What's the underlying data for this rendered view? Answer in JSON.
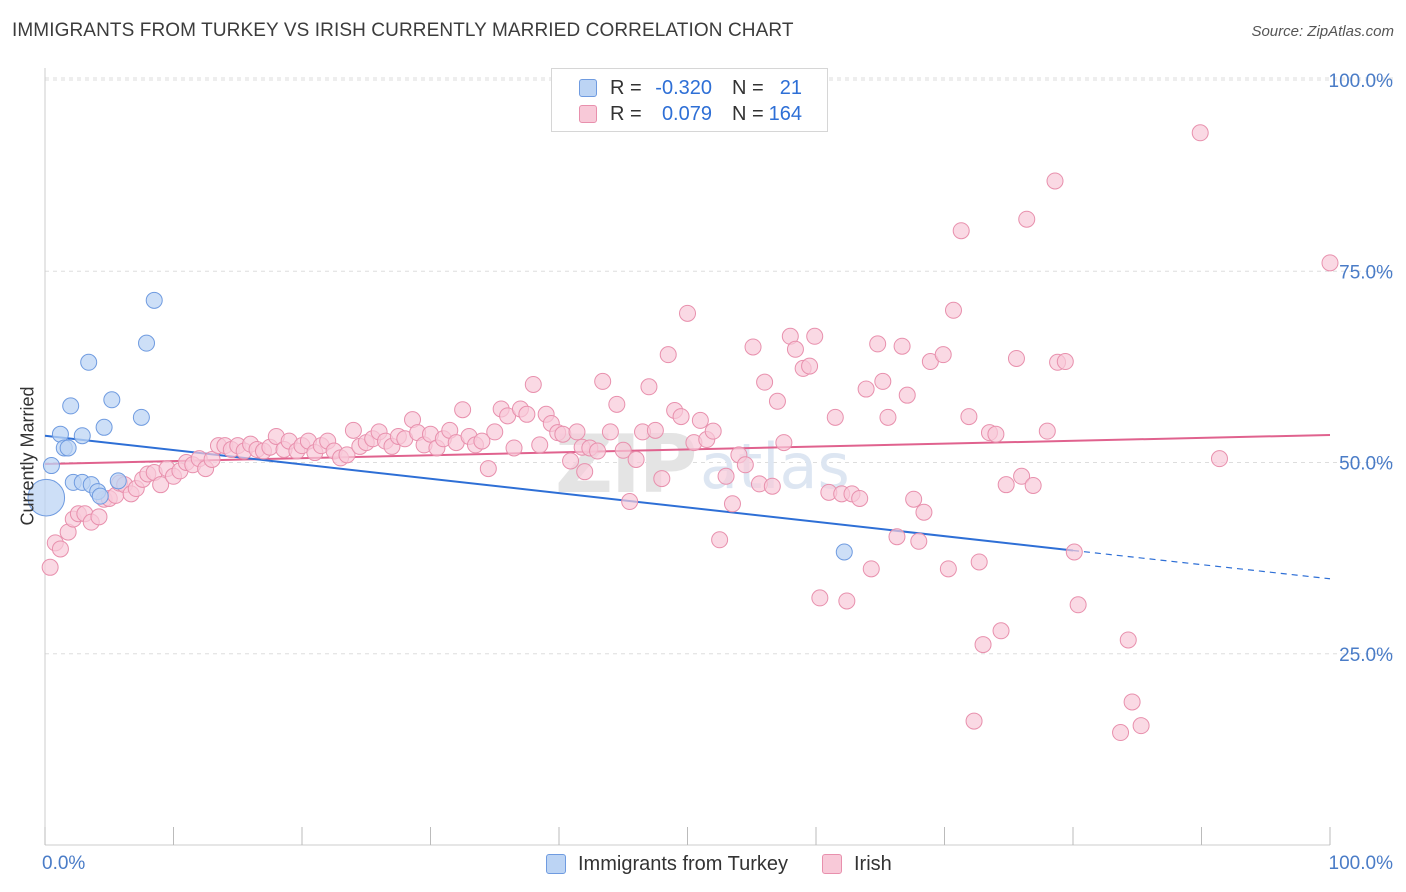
{
  "title": "IMMIGRANTS FROM TURKEY VS IRISH CURRENTLY MARRIED CORRELATION CHART",
  "source": "Source: ZipAtlas.com",
  "watermark": {
    "zip": "ZIP",
    "atlas": "atlas"
  },
  "legend": {
    "rows": [
      {
        "r_label": "R =",
        "r_value": "-0.320",
        "n_label": "N =",
        "n_value": "21"
      },
      {
        "r_label": "R =",
        "r_value": "0.079",
        "n_label": "N =",
        "n_value": "164"
      }
    ]
  },
  "colors": {
    "blue_fill": "#bcd4f4",
    "blue_stroke": "#6f9be0",
    "blue_line": "#2e6fd6",
    "pink_fill": "#f8c9d8",
    "pink_stroke": "#e890ad",
    "pink_line": "#e0628e",
    "axis_text": "#4a7cc7",
    "grid": "#dddddd"
  },
  "chart_data": {
    "type": "scatter",
    "title": "IMMIGRANTS FROM TURKEY VS IRISH CURRENTLY MARRIED CORRELATION CHART",
    "xlabel": "",
    "ylabel": "Currently Married",
    "xlim": [
      0,
      100
    ],
    "ylim": [
      0,
      105
    ],
    "x_tick_labels": [
      "0.0%",
      "100.0%"
    ],
    "y_ticks": [
      25,
      50,
      75,
      100
    ],
    "y_tick_labels": [
      "25.0%",
      "50.0%",
      "75.0%",
      "100.0%"
    ],
    "grid": "horizontal dashed",
    "legend_placement": "bottom",
    "series": [
      {
        "name": "Immigrants from Turkey",
        "color": "#6f9be0",
        "points": [
          [
            0.1,
            45.4,
            3.2
          ],
          [
            0.5,
            49.6,
            1.4
          ],
          [
            1.2,
            53.7,
            1.4
          ],
          [
            1.5,
            51.9,
            1.4
          ],
          [
            1.8,
            51.9,
            1.4
          ],
          [
            2.0,
            57.4,
            1.4
          ],
          [
            2.2,
            47.4,
            1.4
          ],
          [
            2.9,
            47.4,
            1.4
          ],
          [
            2.9,
            53.5,
            1.4
          ],
          [
            3.4,
            63.1,
            1.4
          ],
          [
            3.6,
            47.1,
            1.4
          ],
          [
            4.1,
            46.2,
            1.4
          ],
          [
            4.3,
            45.6,
            1.4
          ],
          [
            4.6,
            54.6,
            1.4
          ],
          [
            5.2,
            58.2,
            1.4
          ],
          [
            5.7,
            47.6,
            1.4
          ],
          [
            7.5,
            55.9,
            1.4
          ],
          [
            7.9,
            65.6,
            1.4
          ],
          [
            8.5,
            71.2,
            1.4
          ],
          [
            62.2,
            38.3,
            1.4
          ]
        ],
        "trend": {
          "x": [
            0,
            80
          ],
          "y": [
            53.5,
            38.5
          ],
          "dashed_to": [
            100,
            34.8
          ]
        }
      },
      {
        "name": "Irish",
        "color": "#e890ad",
        "points": [
          [
            0.4,
            36.3,
            1.4
          ],
          [
            0.8,
            39.5,
            1.4
          ],
          [
            1.2,
            38.7,
            1.4
          ],
          [
            1.8,
            40.9,
            1.4
          ],
          [
            2.2,
            42.6,
            1.4
          ],
          [
            2.6,
            43.3,
            1.4
          ],
          [
            3.1,
            43.3,
            1.4
          ],
          [
            3.6,
            42.2,
            1.4
          ],
          [
            4.2,
            42.9,
            1.4
          ],
          [
            4.6,
            45.2,
            1.4
          ],
          [
            5.0,
            45.3,
            1.4
          ],
          [
            5.5,
            45.7,
            1.4
          ],
          [
            5.8,
            47.3,
            1.4
          ],
          [
            6.2,
            47.1,
            1.4
          ],
          [
            6.7,
            45.9,
            1.4
          ],
          [
            7.1,
            46.6,
            1.4
          ],
          [
            7.6,
            47.8,
            1.4
          ],
          [
            8.0,
            48.5,
            1.4
          ],
          [
            8.5,
            48.7,
            1.4
          ],
          [
            9.0,
            47.1,
            1.4
          ],
          [
            9.5,
            49.2,
            1.4
          ],
          [
            10.0,
            48.2,
            1.4
          ],
          [
            10.5,
            48.9,
            1.4
          ],
          [
            11.0,
            50.0,
            1.4
          ],
          [
            11.5,
            49.7,
            1.4
          ],
          [
            12.0,
            50.5,
            1.4
          ],
          [
            12.5,
            49.2,
            1.4
          ],
          [
            13.0,
            50.4,
            1.4
          ],
          [
            13.5,
            52.2,
            1.4
          ],
          [
            14.0,
            52.2,
            1.4
          ],
          [
            14.5,
            51.7,
            1.4
          ],
          [
            15.0,
            52.2,
            1.4
          ],
          [
            15.5,
            51.5,
            1.4
          ],
          [
            16.0,
            52.4,
            1.4
          ],
          [
            16.5,
            51.7,
            1.4
          ],
          [
            17.0,
            51.5,
            1.4
          ],
          [
            17.5,
            52.0,
            1.4
          ],
          [
            18.0,
            53.4,
            1.4
          ],
          [
            18.6,
            51.7,
            1.4
          ],
          [
            19.0,
            52.8,
            1.4
          ],
          [
            19.6,
            51.5,
            1.4
          ],
          [
            20.0,
            52.2,
            1.4
          ],
          [
            20.5,
            52.8,
            1.4
          ],
          [
            21.0,
            51.3,
            1.4
          ],
          [
            21.5,
            52.2,
            1.4
          ],
          [
            22.0,
            52.8,
            1.4
          ],
          [
            22.5,
            51.5,
            1.4
          ],
          [
            23.0,
            50.6,
            1.4
          ],
          [
            23.5,
            51.0,
            1.4
          ],
          [
            24.0,
            54.2,
            1.4
          ],
          [
            24.5,
            52.1,
            1.4
          ],
          [
            25.0,
            52.6,
            1.4
          ],
          [
            25.5,
            53.1,
            1.4
          ],
          [
            26.0,
            54.0,
            1.4
          ],
          [
            26.5,
            52.8,
            1.4
          ],
          [
            27.0,
            52.1,
            1.4
          ],
          [
            27.5,
            53.4,
            1.4
          ],
          [
            28.0,
            53.1,
            1.4
          ],
          [
            28.6,
            55.6,
            1.4
          ],
          [
            29.0,
            53.9,
            1.4
          ],
          [
            29.5,
            52.3,
            1.4
          ],
          [
            30.0,
            53.7,
            1.4
          ],
          [
            30.5,
            51.9,
            1.4
          ],
          [
            31.0,
            53.1,
            1.4
          ],
          [
            31.5,
            54.2,
            1.4
          ],
          [
            32.0,
            52.6,
            1.4
          ],
          [
            32.5,
            56.9,
            1.4
          ],
          [
            33.0,
            53.4,
            1.4
          ],
          [
            33.5,
            52.3,
            1.4
          ],
          [
            34.0,
            52.8,
            1.4
          ],
          [
            34.5,
            49.2,
            1.4
          ],
          [
            35.0,
            54.0,
            1.4
          ],
          [
            35.5,
            57.0,
            1.4
          ],
          [
            36.0,
            56.1,
            1.4
          ],
          [
            36.5,
            51.9,
            1.4
          ],
          [
            37.0,
            57.0,
            1.4
          ],
          [
            37.5,
            56.3,
            1.4
          ],
          [
            38.0,
            60.2,
            1.4
          ],
          [
            38.5,
            52.3,
            1.4
          ],
          [
            39.0,
            56.3,
            1.4
          ],
          [
            39.4,
            55.1,
            1.4
          ],
          [
            39.9,
            53.9,
            1.4
          ],
          [
            40.3,
            53.7,
            1.4
          ],
          [
            40.9,
            50.2,
            1.4
          ],
          [
            41.4,
            54.0,
            1.4
          ],
          [
            41.8,
            52.0,
            1.4
          ],
          [
            42.0,
            48.8,
            1.4
          ],
          [
            42.4,
            51.9,
            1.4
          ],
          [
            43.0,
            51.5,
            1.4
          ],
          [
            43.4,
            60.6,
            1.4
          ],
          [
            44.0,
            54.0,
            1.4
          ],
          [
            44.5,
            57.6,
            1.4
          ],
          [
            45.0,
            51.6,
            1.4
          ],
          [
            45.5,
            44.9,
            1.4
          ],
          [
            46.0,
            50.4,
            1.4
          ],
          [
            46.5,
            54.0,
            1.4
          ],
          [
            47.0,
            59.9,
            1.4
          ],
          [
            47.5,
            54.2,
            1.4
          ],
          [
            48.0,
            47.9,
            1.4
          ],
          [
            48.5,
            64.1,
            1.4
          ],
          [
            49.0,
            56.8,
            1.4
          ],
          [
            49.5,
            56.0,
            1.4
          ],
          [
            50.0,
            69.5,
            1.4
          ],
          [
            50.5,
            52.6,
            1.4
          ],
          [
            51.0,
            55.5,
            1.4
          ],
          [
            51.5,
            53.0,
            1.4
          ],
          [
            52.0,
            54.1,
            1.4
          ],
          [
            52.5,
            39.9,
            1.4
          ],
          [
            53.0,
            48.2,
            1.4
          ],
          [
            53.5,
            44.6,
            1.4
          ],
          [
            54.0,
            51.0,
            1.4
          ],
          [
            54.5,
            49.7,
            1.4
          ],
          [
            55.1,
            65.1,
            1.4
          ],
          [
            55.6,
            47.2,
            1.4
          ],
          [
            56.0,
            60.5,
            1.4
          ],
          [
            56.6,
            46.9,
            1.4
          ],
          [
            57.0,
            58.0,
            1.4
          ],
          [
            57.5,
            52.6,
            1.4
          ],
          [
            58.0,
            66.5,
            1.4
          ],
          [
            58.4,
            64.8,
            1.4
          ],
          [
            59.0,
            62.3,
            1.4
          ],
          [
            59.5,
            62.6,
            1.4
          ],
          [
            59.9,
            66.5,
            1.4
          ],
          [
            60.3,
            32.3,
            1.4
          ],
          [
            61.0,
            46.1,
            1.4
          ],
          [
            61.5,
            55.9,
            1.4
          ],
          [
            62.0,
            45.9,
            1.4
          ],
          [
            62.4,
            31.9,
            1.4
          ],
          [
            62.8,
            45.9,
            1.4
          ],
          [
            63.4,
            45.3,
            1.4
          ],
          [
            63.9,
            59.6,
            1.4
          ],
          [
            64.3,
            36.1,
            1.4
          ],
          [
            64.8,
            65.5,
            1.4
          ],
          [
            65.2,
            60.6,
            1.4
          ],
          [
            65.6,
            55.9,
            1.4
          ],
          [
            66.3,
            40.3,
            1.4
          ],
          [
            66.7,
            65.2,
            1.4
          ],
          [
            67.1,
            58.8,
            1.4
          ],
          [
            67.6,
            45.2,
            1.4
          ],
          [
            68.0,
            39.7,
            1.4
          ],
          [
            68.4,
            43.5,
            1.4
          ],
          [
            68.9,
            63.2,
            1.4
          ],
          [
            69.9,
            64.1,
            1.4
          ],
          [
            70.3,
            36.1,
            1.4
          ],
          [
            70.7,
            69.9,
            1.4
          ],
          [
            71.3,
            80.3,
            1.4
          ],
          [
            71.9,
            56.0,
            1.4
          ],
          [
            72.3,
            16.2,
            1.4
          ],
          [
            72.7,
            37.0,
            1.4
          ],
          [
            73.0,
            26.2,
            1.4
          ],
          [
            73.5,
            53.9,
            1.4
          ],
          [
            74.0,
            53.7,
            1.4
          ],
          [
            74.4,
            28.0,
            1.4
          ],
          [
            74.8,
            47.1,
            1.4
          ],
          [
            75.6,
            63.6,
            1.4
          ],
          [
            76.0,
            48.2,
            1.4
          ],
          [
            76.4,
            81.8,
            1.4
          ],
          [
            76.9,
            47.0,
            1.4
          ],
          [
            78.0,
            54.1,
            1.4
          ],
          [
            78.6,
            86.8,
            1.4
          ],
          [
            78.8,
            63.1,
            1.4
          ],
          [
            79.4,
            63.2,
            1.4
          ],
          [
            80.1,
            38.3,
            1.4
          ],
          [
            80.4,
            31.4,
            1.4
          ],
          [
            83.7,
            14.7,
            1.4
          ],
          [
            84.3,
            26.8,
            1.4
          ],
          [
            84.6,
            18.7,
            1.4
          ],
          [
            85.3,
            15.6,
            1.4
          ],
          [
            89.9,
            93.1,
            1.4
          ],
          [
            91.4,
            50.5,
            1.4
          ],
          [
            100.0,
            76.1,
            1.4
          ]
        ],
        "trend": {
          "x": [
            0,
            100
          ],
          "y": [
            49.8,
            53.6
          ]
        }
      }
    ]
  },
  "bottom_legend": [
    {
      "label": "Immigrants from Turkey"
    },
    {
      "label": "Irish"
    }
  ]
}
